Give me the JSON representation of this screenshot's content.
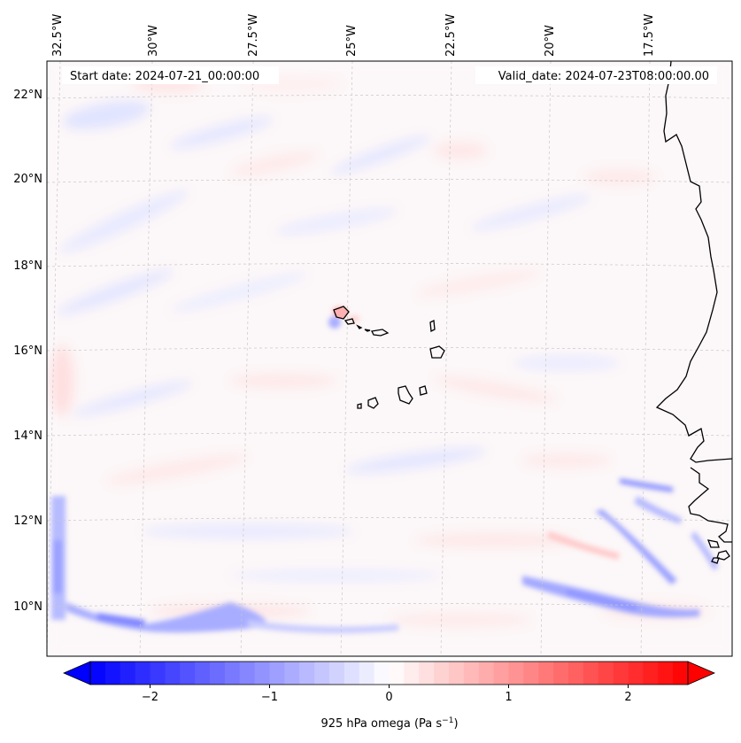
{
  "map": {
    "start_date_text": "Start date: 2024-07-21_00:00:00",
    "valid_date_text": "Valid_date: 2024-07-23T08:00:00.00",
    "lon_labels": [
      "32.5°W",
      "30°W",
      "27.5°W",
      "25°W",
      "22.5°W",
      "20°W",
      "17.5°W"
    ],
    "lat_labels": [
      "22°N",
      "20°N",
      "18°N",
      "16°N",
      "14°N",
      "12°N",
      "10°N"
    ],
    "gridlines": true,
    "features": [
      "cape-verde-islands",
      "west-africa-coastline"
    ]
  },
  "colorbar": {
    "label": "925 hPa omega (Pa s",
    "label_sup": "−1",
    "label_end": ")",
    "ticks": [
      "−2",
      "−1",
      "0",
      "1",
      "2"
    ],
    "tick_values": [
      -2,
      -1,
      0,
      1,
      2
    ],
    "vmin": -2.5,
    "vmax": 2.5,
    "extend": "both",
    "colormap": "bwr",
    "color_low": "#0000ff",
    "color_mid": "#ffffff",
    "color_high": "#ff0000"
  }
}
